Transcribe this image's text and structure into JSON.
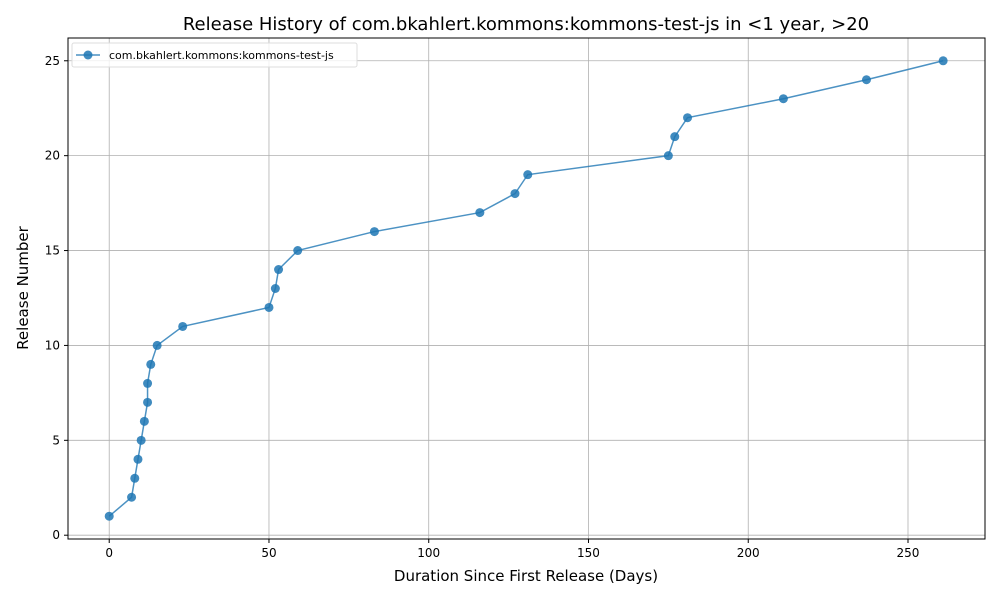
{
  "chart_data": {
    "type": "line",
    "title": "Release History of com.bkahlert.kommons:kommons-test-js in <1 year, >20",
    "xlabel": "Duration Since First Release (Days)",
    "ylabel": "Release Number",
    "xlim": [
      -12.9,
      274.1
    ],
    "ylim": [
      -0.2,
      26.2
    ],
    "xticks": [
      0,
      50,
      100,
      150,
      200,
      250
    ],
    "yticks": [
      0,
      5,
      10,
      15,
      20,
      25
    ],
    "grid": true,
    "legend_position": "top-left",
    "color": "#1f77b4",
    "series": [
      {
        "name": "com.bkahlert.kommons:kommons-test-js",
        "x": [
          0,
          7,
          8,
          9,
          10,
          11,
          12,
          12,
          13,
          15,
          23,
          50,
          52,
          53,
          59,
          83,
          116,
          127,
          131,
          175,
          177,
          181,
          211,
          237,
          261
        ],
        "y": [
          1,
          2,
          3,
          4,
          5,
          6,
          7,
          8,
          9,
          10,
          11,
          12,
          13,
          14,
          15,
          16,
          17,
          18,
          19,
          20,
          21,
          22,
          23,
          24,
          25
        ]
      }
    ]
  }
}
